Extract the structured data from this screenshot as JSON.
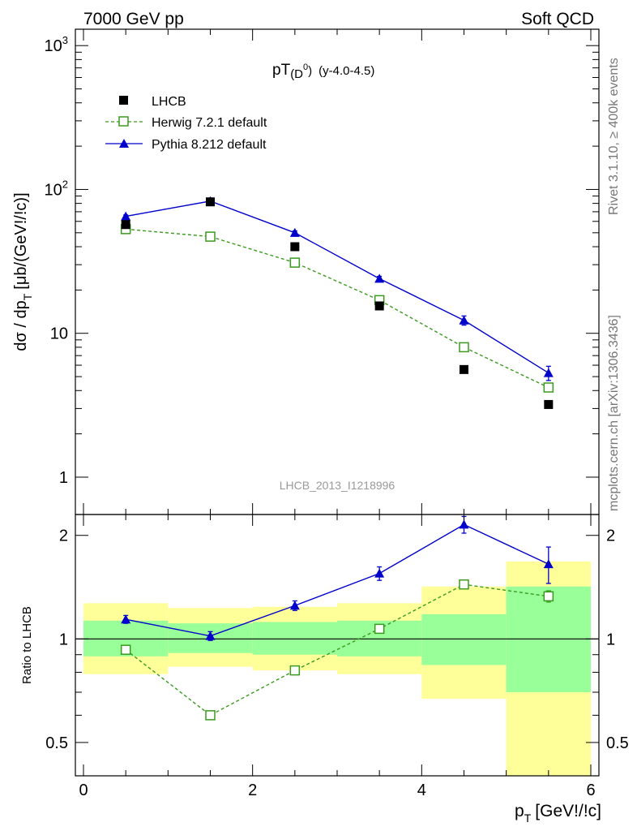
{
  "header": {
    "left": "7000 GeV pp",
    "right": "Soft QCD"
  },
  "side": {
    "rivet": "Rivet 3.1.10, ≥ 400k events",
    "mcplots": "mcplots.cern.ch [arXiv:1306.3436]"
  },
  "chart_data": [
    {
      "type": "scatter",
      "title_main": "pT",
      "title_sub": "(D",
      "title_sup": "0",
      "title_close": ")",
      "title_range": "(y-4.0-4.5)",
      "ylabel": "dσ / dp",
      "ylabel_sub": "T",
      "ylabel_unit": "[μb/(GeV!/!c)]",
      "watermark": "LHCB_2013_I1218996",
      "xlim": [
        0,
        6
      ],
      "ylim": [
        0.55,
        1300
      ],
      "yscale": "log",
      "yticks": [
        {
          "value": 1,
          "base": "1",
          "exp": ""
        },
        {
          "value": 10,
          "base": "10",
          "exp": ""
        },
        {
          "value": 100,
          "base": "10",
          "exp": "2"
        },
        {
          "value": 1000,
          "base": "10",
          "exp": "3"
        }
      ],
      "series": [
        {
          "name": "LHCB",
          "color": "#000000",
          "marker": "square",
          "x": [
            0.5,
            1.5,
            2.5,
            3.5,
            4.5,
            5.5
          ],
          "y": [
            57,
            82,
            40,
            15.5,
            5.6,
            3.2
          ]
        },
        {
          "name": "Herwig 7.2.1 default",
          "color": "#3a9a1e",
          "marker": "open-square",
          "line": "dashed",
          "x": [
            0.5,
            1.5,
            2.5,
            3.5,
            4.5,
            5.5
          ],
          "y": [
            53,
            47,
            31,
            17,
            8.0,
            4.2
          ]
        },
        {
          "name": "Pythia 8.212 default",
          "color": "#0000cc",
          "marker": "triangle",
          "line": "solid",
          "x": [
            0.5,
            1.5,
            2.5,
            3.5,
            4.5,
            5.5
          ],
          "y": [
            65,
            83,
            50,
            24,
            12.3,
            5.3
          ],
          "err": [
            1.5,
            2,
            1.5,
            0.9,
            0.9,
            0.6
          ]
        }
      ]
    },
    {
      "type": "scatter",
      "ylabel": "Ratio to LHCB",
      "xlabel": "p",
      "xlabel_sub": "T",
      "xlabel_unit": "[GeV!/!c]",
      "xlim": [
        0,
        6
      ],
      "ylim": [
        0.4,
        2.3
      ],
      "xticks": [
        0,
        2,
        4,
        6
      ],
      "yticks": [
        0.5,
        1,
        2
      ],
      "bands": {
        "x_edges": [
          0,
          1,
          2,
          3,
          4,
          5,
          6
        ],
        "yellow_low": [
          0.79,
          0.83,
          0.81,
          0.79,
          0.67,
          0.35
        ],
        "yellow_high": [
          1.27,
          1.23,
          1.24,
          1.27,
          1.42,
          1.68
        ],
        "green_low": [
          0.89,
          0.91,
          0.9,
          0.89,
          0.84,
          0.7
        ],
        "green_high": [
          1.13,
          1.11,
          1.12,
          1.13,
          1.18,
          1.42
        ]
      },
      "series": [
        {
          "name": "Herwig 7.2.1 default",
          "color": "#3a9a1e",
          "marker": "open-square",
          "line": "dashed",
          "x": [
            0.5,
            1.5,
            2.5,
            3.5,
            4.5,
            5.5
          ],
          "y": [
            0.93,
            0.6,
            0.81,
            1.07,
            1.44,
            1.33
          ],
          "err": [
            0.01,
            0.01,
            0.01,
            0.02,
            0.04,
            0.05
          ]
        },
        {
          "name": "Pythia 8.212 default",
          "color": "#0000cc",
          "marker": "triangle",
          "line": "solid",
          "x": [
            0.5,
            1.5,
            2.5,
            3.5,
            4.5,
            5.5
          ],
          "y": [
            1.14,
            1.02,
            1.25,
            1.55,
            2.15,
            1.65
          ],
          "err": [
            0.03,
            0.03,
            0.04,
            0.07,
            0.12,
            0.2
          ]
        }
      ]
    }
  ]
}
